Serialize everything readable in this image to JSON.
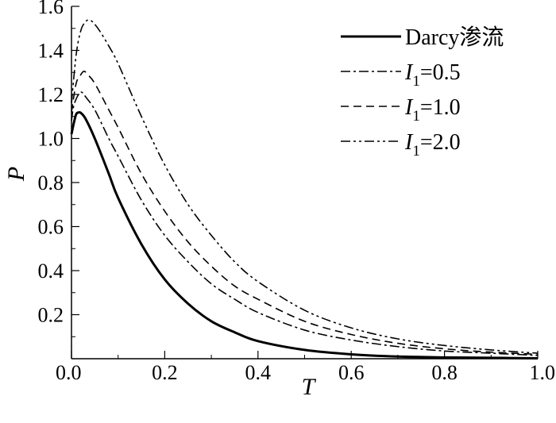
{
  "chart_data": {
    "type": "line",
    "xlabel": "T",
    "ylabel": "P",
    "xlim": [
      0,
      1.0
    ],
    "ylim": [
      0,
      1.6
    ],
    "x_ticks": [
      "0.0",
      "0.2",
      "0.4",
      "0.6",
      "0.8",
      "1.0"
    ],
    "y_ticks": [
      "0.2",
      "0.4",
      "0.6",
      "0.8",
      "1.0",
      "1.2",
      "1.4",
      "1.6"
    ],
    "grid": false,
    "legend_position": "top-right",
    "series": [
      {
        "name": "Darcy渗流",
        "legend": {
          "prefix": "Darcy渗流",
          "sub": "",
          "suffix": ""
        },
        "dash": "solid",
        "stroke_width": 3,
        "points": [
          [
            0,
            1.02
          ],
          [
            0.005,
            1.07
          ],
          [
            0.01,
            1.11
          ],
          [
            0.015,
            1.118
          ],
          [
            0.02,
            1.116
          ],
          [
            0.03,
            1.09
          ],
          [
            0.05,
            1.0
          ],
          [
            0.08,
            0.84
          ],
          [
            0.1,
            0.73
          ],
          [
            0.15,
            0.52
          ],
          [
            0.2,
            0.36
          ],
          [
            0.25,
            0.25
          ],
          [
            0.3,
            0.17
          ],
          [
            0.35,
            0.12
          ],
          [
            0.4,
            0.08
          ],
          [
            0.5,
            0.04
          ],
          [
            0.6,
            0.02
          ],
          [
            0.7,
            0.01
          ],
          [
            0.8,
            0.006
          ],
          [
            0.9,
            0.004
          ],
          [
            1.0,
            0.002
          ]
        ]
      },
      {
        "name": "I1=0.5",
        "legend": {
          "prefix": "I",
          "sub": "1",
          "suffix": "=0.5"
        },
        "dash": "dashdot",
        "stroke_width": 1.6,
        "points": [
          [
            0,
            1.08
          ],
          [
            0.005,
            1.15
          ],
          [
            0.015,
            1.2
          ],
          [
            0.022,
            1.21
          ],
          [
            0.03,
            1.19
          ],
          [
            0.05,
            1.13
          ],
          [
            0.08,
            1.0
          ],
          [
            0.1,
            0.92
          ],
          [
            0.15,
            0.72
          ],
          [
            0.2,
            0.56
          ],
          [
            0.25,
            0.44
          ],
          [
            0.3,
            0.34
          ],
          [
            0.35,
            0.27
          ],
          [
            0.4,
            0.21
          ],
          [
            0.5,
            0.13
          ],
          [
            0.6,
            0.085
          ],
          [
            0.7,
            0.055
          ],
          [
            0.8,
            0.035
          ],
          [
            0.9,
            0.025
          ],
          [
            1.0,
            0.015
          ]
        ]
      },
      {
        "name": "I1=1.0",
        "legend": {
          "prefix": "I",
          "sub": "1",
          "suffix": "=1.0"
        },
        "dash": "dashed",
        "stroke_width": 1.6,
        "points": [
          [
            0,
            1.12
          ],
          [
            0.01,
            1.25
          ],
          [
            0.02,
            1.29
          ],
          [
            0.027,
            1.305
          ],
          [
            0.035,
            1.29
          ],
          [
            0.05,
            1.25
          ],
          [
            0.08,
            1.13
          ],
          [
            0.1,
            1.05
          ],
          [
            0.15,
            0.84
          ],
          [
            0.2,
            0.67
          ],
          [
            0.25,
            0.53
          ],
          [
            0.3,
            0.42
          ],
          [
            0.35,
            0.33
          ],
          [
            0.4,
            0.27
          ],
          [
            0.5,
            0.17
          ],
          [
            0.6,
            0.11
          ],
          [
            0.7,
            0.07
          ],
          [
            0.8,
            0.045
          ],
          [
            0.9,
            0.03
          ],
          [
            1.0,
            0.02
          ]
        ]
      },
      {
        "name": "I1=2.0",
        "legend": {
          "prefix": "I",
          "sub": "1",
          "suffix": "=2.0"
        },
        "dash": "dashdotdot",
        "stroke_width": 1.6,
        "points": [
          [
            0,
            1.16
          ],
          [
            0.01,
            1.38
          ],
          [
            0.02,
            1.49
          ],
          [
            0.03,
            1.53
          ],
          [
            0.037,
            1.538
          ],
          [
            0.045,
            1.53
          ],
          [
            0.06,
            1.49
          ],
          [
            0.08,
            1.42
          ],
          [
            0.1,
            1.34
          ],
          [
            0.15,
            1.1
          ],
          [
            0.2,
            0.88
          ],
          [
            0.25,
            0.7
          ],
          [
            0.3,
            0.56
          ],
          [
            0.35,
            0.44
          ],
          [
            0.4,
            0.35
          ],
          [
            0.5,
            0.22
          ],
          [
            0.6,
            0.14
          ],
          [
            0.7,
            0.09
          ],
          [
            0.8,
            0.06
          ],
          [
            0.9,
            0.04
          ],
          [
            1.0,
            0.025
          ]
        ]
      }
    ]
  }
}
